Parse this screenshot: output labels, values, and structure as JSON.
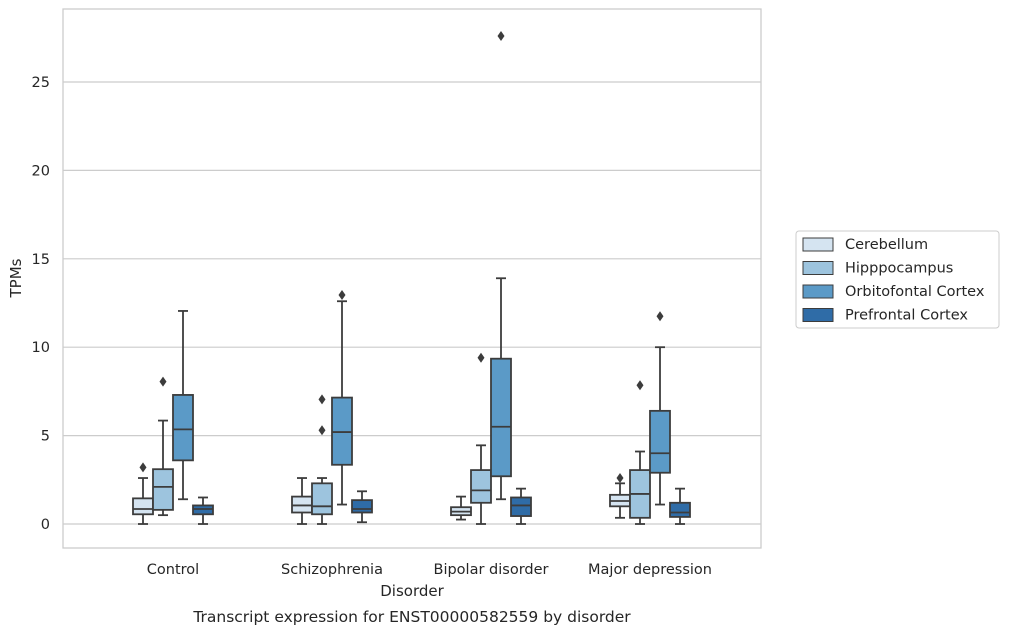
{
  "chart_data": {
    "type": "box",
    "title": "Transcript expression for ENST00000582559 by disorder",
    "xlabel": "Disorder",
    "ylabel": "TPMs",
    "ylim": [
      -1.3,
      29.0
    ],
    "yticks": [
      0,
      5,
      10,
      15,
      20,
      25
    ],
    "grid": "horizontal",
    "legend_position": "outside-right",
    "categories": [
      "Control",
      "Schizophrenia",
      "Bipolar disorder",
      "Major depression"
    ],
    "series": [
      {
        "name": "Cerebellum",
        "color": "#d5e4f1",
        "boxes": [
          {
            "whislo": 0.0,
            "q1": 0.55,
            "med": 0.85,
            "q3": 1.45,
            "whishi": 2.6,
            "fliers": [
              3.2
            ]
          },
          {
            "whislo": 0.0,
            "q1": 0.65,
            "med": 1.05,
            "q3": 1.55,
            "whishi": 2.6,
            "fliers": []
          },
          {
            "whislo": 0.25,
            "q1": 0.5,
            "med": 0.7,
            "q3": 0.95,
            "whishi": 1.55,
            "fliers": []
          },
          {
            "whislo": 0.35,
            "q1": 1.0,
            "med": 1.3,
            "q3": 1.65,
            "whishi": 2.3,
            "fliers": [
              2.6
            ]
          }
        ]
      },
      {
        "name": "Hipppocampus",
        "color": "#9dc4de",
        "boxes": [
          {
            "whislo": 0.5,
            "q1": 0.8,
            "med": 2.1,
            "q3": 3.1,
            "whishi": 5.85,
            "fliers": [
              8.05
            ]
          },
          {
            "whislo": 0.0,
            "q1": 0.55,
            "med": 1.0,
            "q3": 2.3,
            "whishi": 2.6,
            "fliers": [
              5.3,
              7.05
            ]
          },
          {
            "whislo": 0.0,
            "q1": 1.2,
            "med": 1.9,
            "q3": 3.05,
            "whishi": 4.45,
            "fliers": [
              9.4
            ]
          },
          {
            "whislo": 0.0,
            "q1": 0.35,
            "med": 1.7,
            "q3": 3.05,
            "whishi": 4.1,
            "fliers": [
              7.85
            ]
          }
        ]
      },
      {
        "name": "Orbitofontal Cortex",
        "color": "#5b9ac7",
        "boxes": [
          {
            "whislo": 1.4,
            "q1": 3.6,
            "med": 5.35,
            "q3": 7.3,
            "whishi": 12.05,
            "fliers": []
          },
          {
            "whislo": 1.1,
            "q1": 3.35,
            "med": 5.2,
            "q3": 7.15,
            "whishi": 12.6,
            "fliers": [
              12.95
            ]
          },
          {
            "whislo": 1.4,
            "q1": 2.7,
            "med": 5.5,
            "q3": 9.35,
            "whishi": 13.9,
            "fliers": [
              27.6
            ]
          },
          {
            "whislo": 1.1,
            "q1": 2.9,
            "med": 4.0,
            "q3": 6.4,
            "whishi": 10.0,
            "fliers": [
              11.75
            ]
          }
        ]
      },
      {
        "name": "Prefrontal Cortex",
        "color": "#2f6ca7",
        "boxes": [
          {
            "whislo": 0.0,
            "q1": 0.55,
            "med": 0.85,
            "q3": 1.05,
            "whishi": 1.5,
            "fliers": []
          },
          {
            "whislo": 0.1,
            "q1": 0.65,
            "med": 0.85,
            "q3": 1.35,
            "whishi": 1.85,
            "fliers": []
          },
          {
            "whislo": 0.0,
            "q1": 0.45,
            "med": 1.05,
            "q3": 1.5,
            "whishi": 2.0,
            "fliers": []
          },
          {
            "whislo": 0.0,
            "q1": 0.4,
            "med": 0.65,
            "q3": 1.2,
            "whishi": 2.0,
            "fliers": []
          }
        ]
      }
    ]
  },
  "colors": {
    "frame": "#cccccc",
    "grid": "#cccccc",
    "box_line": "#3c3c3c",
    "text": "#262626"
  }
}
